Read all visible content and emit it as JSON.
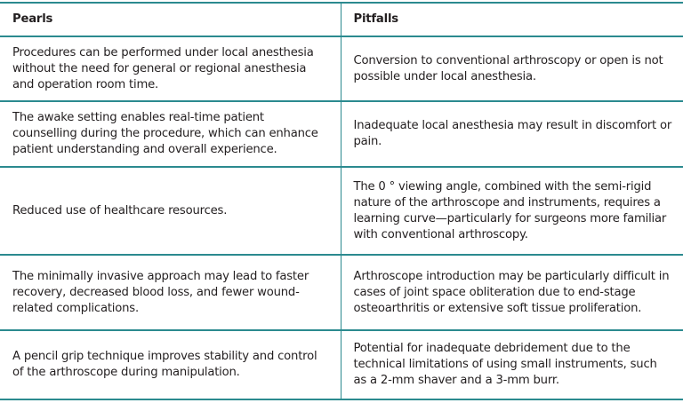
{
  "table": {
    "headers": [
      "Pearls",
      "Pitfalls"
    ],
    "rows": [
      {
        "pearl": "Procedures can be performed under local anesthesia without the need for general or regional anesthesia and operation room time.",
        "pitfall": "Conversion to conventional arthroscopy or open is not possible under local anesthesia."
      },
      {
        "pearl": "The awake setting enables real-time patient counselling during the procedure, which can enhance patient understanding and overall experience.",
        "pitfall": "Inadequate local anesthesia may result in discomfort or pain."
      },
      {
        "pearl": "Reduced use of healthcare resources.",
        "pitfall": "The 0 ° viewing angle, combined with the semi-rigid nature of the arthroscope and instruments, requires a learning curve—particularly for surgeons more familiar with conventional arthroscopy."
      },
      {
        "pearl": "The minimally invasive approach may lead to faster recovery, decreased blood loss, and fewer wound-related complications.",
        "pitfall": "Arthroscope introduction may be particularly difficult in cases of joint space obliteration due to end-stage osteoarthritis or extensive soft tissue proliferation."
      },
      {
        "pearl": "A pencil grip technique improves stability and control of the arthroscope during manipulation.",
        "pitfall": "Potential for inadequate debridement due to the technical limitations of using small instruments, such as a 2-mm shaver and a 3-mm burr."
      }
    ],
    "border_color": "#2b8a8f"
  }
}
